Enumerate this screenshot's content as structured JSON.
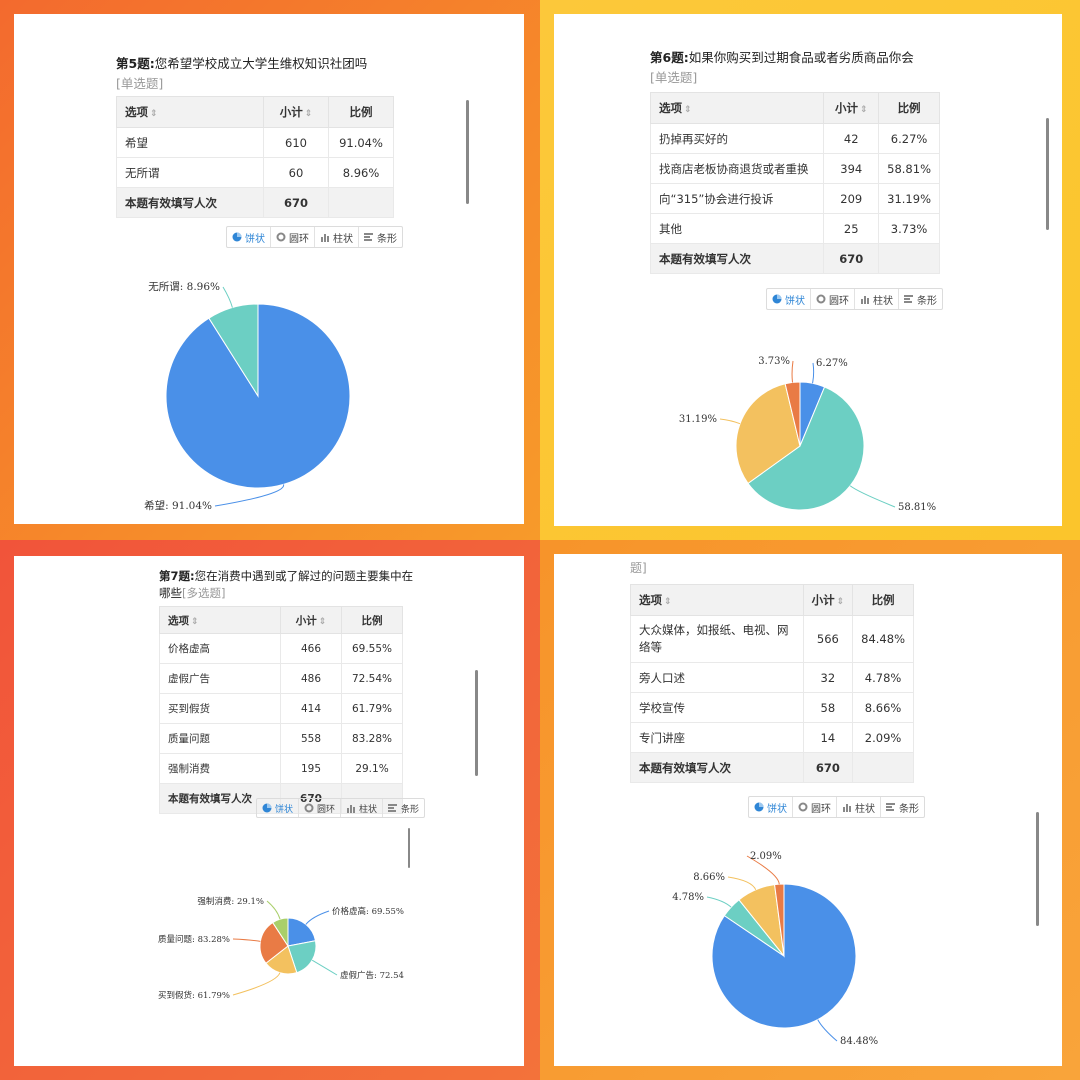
{
  "toolbar": {
    "pie": "饼状",
    "ring": "圆环",
    "column": "柱状",
    "bar": "条形"
  },
  "table_headers": {
    "option": "选项",
    "count": "小计",
    "ratio": "比例"
  },
  "total_label": "本题有效填写人次",
  "q5": {
    "number": "第5题:",
    "text": "您希望学校成立大学生维权知识社团吗",
    "type": "[单选题]",
    "rows": [
      {
        "option": "希望",
        "count": "610",
        "ratio": "91.04%"
      },
      {
        "option": "无所谓",
        "count": "60",
        "ratio": "8.96%"
      }
    ],
    "total": "670",
    "labels": [
      "希望: 91.04%",
      "无所谓: 8.96%"
    ]
  },
  "q6": {
    "number": "第6题:",
    "text": "如果你购买到过期食品或者劣质商品你会",
    "type": "[单选题]",
    "rows": [
      {
        "option": "扔掉再买好的",
        "count": "42",
        "ratio": "6.27%"
      },
      {
        "option": "找商店老板协商退货或者重换",
        "count": "394",
        "ratio": "58.81%"
      },
      {
        "option": "向“315”协会进行投诉",
        "count": "209",
        "ratio": "31.19%"
      },
      {
        "option": "其他",
        "count": "25",
        "ratio": "3.73%"
      }
    ],
    "total": "670",
    "labels": [
      "6.27%",
      "58.81%",
      "31.19%",
      "3.73%"
    ]
  },
  "q7": {
    "number": "第7题:",
    "text": "您在消费中遇到或了解过的问题主要集中在哪些",
    "type": "[多选题]",
    "rows": [
      {
        "option": "价格虚高",
        "count": "466",
        "ratio": "69.55%"
      },
      {
        "option": "虚假广告",
        "count": "486",
        "ratio": "72.54%"
      },
      {
        "option": "买到假货",
        "count": "414",
        "ratio": "61.79%"
      },
      {
        "option": "质量问题",
        "count": "558",
        "ratio": "83.28%"
      },
      {
        "option": "强制消费",
        "count": "195",
        "ratio": "29.1%"
      }
    ],
    "total": "670",
    "labels": [
      "价格虚高: 69.55%",
      "虚假广告: 72.54",
      "买到假货: 61.79%",
      "质量问题: 83.28%",
      "强制消费: 29.1%"
    ]
  },
  "q8": {
    "type_tail": "题]",
    "rows": [
      {
        "option": "大众媒体，如报纸、电视、网络等",
        "count": "566",
        "ratio": "84.48%"
      },
      {
        "option": "旁人口述",
        "count": "32",
        "ratio": "4.78%"
      },
      {
        "option": "学校宣传",
        "count": "58",
        "ratio": "8.66%"
      },
      {
        "option": "专门讲座",
        "count": "14",
        "ratio": "2.09%"
      }
    ],
    "total": "670",
    "labels": [
      "84.48%",
      "4.78%",
      "8.66%",
      "2.09%"
    ]
  },
  "colors": {
    "blue": "#4a90e8",
    "teal": "#6ccfc3",
    "yellow": "#f3c15f",
    "orange": "#e97b45",
    "green": "#a9cf6a"
  },
  "chart_data": [
    {
      "type": "pie",
      "categories": [
        "希望",
        "无所谓"
      ],
      "values": [
        91.04,
        8.96
      ],
      "colors": [
        "#4a90e8",
        "#6ccfc3"
      ]
    },
    {
      "type": "pie",
      "categories": [
        "扔掉再买好的",
        "找商店老板协商退货或者重换",
        "向“315”协会进行投诉",
        "其他"
      ],
      "values": [
        6.27,
        58.81,
        31.19,
        3.73
      ],
      "colors": [
        "#4a90e8",
        "#6ccfc3",
        "#f3c15f",
        "#e97b45"
      ]
    },
    {
      "type": "pie",
      "categories": [
        "价格虚高",
        "虚假广告",
        "买到假货",
        "质量问题",
        "强制消费"
      ],
      "values": [
        69.55,
        72.54,
        61.79,
        83.28,
        29.1
      ],
      "colors": [
        "#4a90e8",
        "#6ccfc3",
        "#f3c15f",
        "#e97b45",
        "#a9cf6a"
      ]
    },
    {
      "type": "pie",
      "categories": [
        "大众媒体，如报纸、电视、网络等",
        "旁人口述",
        "学校宣传",
        "专门讲座"
      ],
      "values": [
        84.48,
        4.78,
        8.66,
        2.09
      ],
      "colors": [
        "#4a90e8",
        "#6ccfc3",
        "#f3c15f",
        "#e97b45"
      ]
    }
  ]
}
